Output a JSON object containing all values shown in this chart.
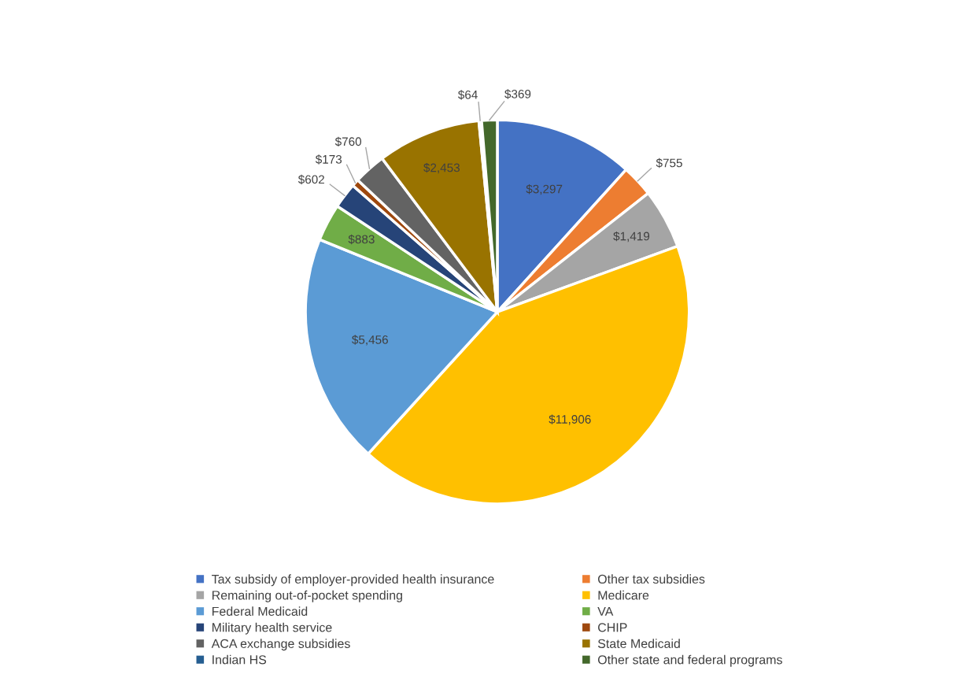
{
  "chart_data": {
    "type": "pie",
    "categories": [
      "Tax subsidy of employer-provided health insurance",
      "Other tax subsidies",
      "Remaining out-of-pocket spending",
      "Medicare",
      "Federal Medicaid",
      "VA",
      "Military health service",
      "CHIP",
      "ACA exchange subsidies",
      "State Medicaid",
      "Indian HS",
      "Other state and federal programs"
    ],
    "values": [
      3297,
      755,
      1419,
      11906,
      5456,
      883,
      602,
      173,
      760,
      2453,
      64,
      369
    ],
    "value_labels": [
      "$3,297",
      "$755",
      "$1,419",
      "$11,906",
      "$5,456",
      "$883",
      "$602",
      "$173",
      "$760",
      "$2,453",
      "$64",
      "$369"
    ],
    "colors": [
      "#4472c4",
      "#ed7d31",
      "#a5a5a5",
      "#ffc000",
      "#5b9bd5",
      "#70ad47",
      "#264478",
      "#9e480e",
      "#636363",
      "#997300",
      "#255e91",
      "#43682b"
    ],
    "legend": "bottom"
  }
}
